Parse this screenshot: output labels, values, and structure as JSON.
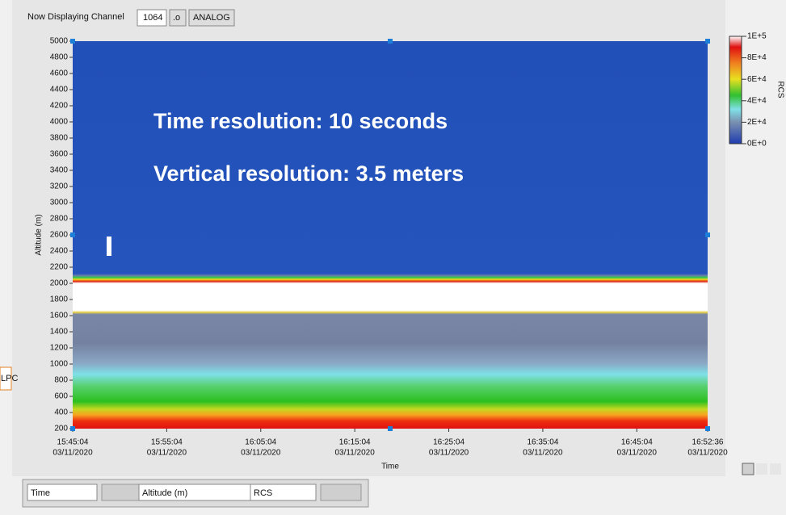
{
  "toolbar": {
    "label": "Now Displaying Channel",
    "channel": "1064",
    "suffix": ".o",
    "mode": "ANALOG"
  },
  "side_label": "LPC",
  "chart_data": {
    "type": "intensity",
    "x_label": "Time",
    "y_label": "Altitude (m)",
    "annotations": [
      "Time resolution: 10 seconds",
      "Vertical resolution: 3.5 meters"
    ],
    "ylim": [
      200,
      5000
    ],
    "yticks": [
      200,
      400,
      600,
      800,
      1000,
      1200,
      1400,
      1600,
      1800,
      2000,
      2200,
      2400,
      2600,
      2800,
      3000,
      3200,
      3400,
      3600,
      3800,
      4000,
      4200,
      4400,
      4600,
      4800,
      5000
    ],
    "xlim": [
      "15:45:04",
      "16:52:36"
    ],
    "xticks": [
      {
        "time": "15:45:04",
        "date": "03/11/2020"
      },
      {
        "time": "15:55:04",
        "date": "03/11/2020"
      },
      {
        "time": "16:05:04",
        "date": "03/11/2020"
      },
      {
        "time": "16:15:04",
        "date": "03/11/2020"
      },
      {
        "time": "16:25:04",
        "date": "03/11/2020"
      },
      {
        "time": "16:35:04",
        "date": "03/11/2020"
      },
      {
        "time": "16:45:04",
        "date": "03/11/2020"
      },
      {
        "time": "16:52:36",
        "date": "03/11/2020"
      }
    ],
    "colorbar": {
      "label": "RCS",
      "zlim": [
        0,
        100000
      ],
      "ticks": [
        {
          "value": 0,
          "label": "0E+0"
        },
        {
          "value": 20000,
          "label": "2E+4"
        },
        {
          "value": 40000,
          "label": "4E+4"
        },
        {
          "value": 60000,
          "label": "6E+4"
        },
        {
          "value": 80000,
          "label": "8E+4"
        },
        {
          "value": 100000,
          "label": "1E+5"
        }
      ]
    }
  },
  "cursor_legend": {
    "fields": [
      "Time",
      "Altitude (m)",
      "RCS"
    ]
  }
}
